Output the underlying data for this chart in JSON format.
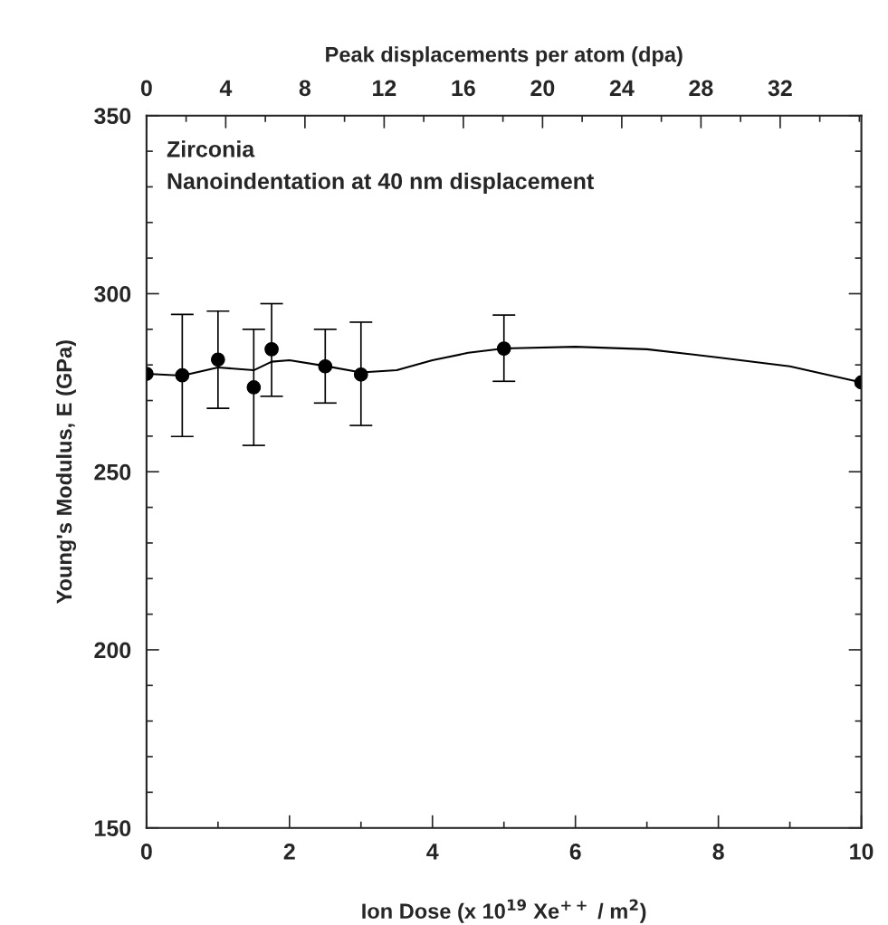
{
  "chart_data": {
    "type": "scatter",
    "xlabel": "Ion Dose (x 10$^{19}$ Xe$^{++}$ / m$^{2}$)",
    "ylabel": "Young's Modulus, E (GPa)",
    "x2label": "Peak displacements per atom (dpa)",
    "annotations": [
      "Zirconia",
      "Nanoindentation at 40 nm displacement"
    ],
    "series": [
      {
        "color": "#000000",
        "marker": "circle",
        "x": [
          0,
          0.5,
          1,
          1.5,
          1.75,
          2.5,
          3,
          5,
          10
        ],
        "values": [
          277.5,
          277.1,
          281.5,
          273.7,
          284.4,
          279.6,
          277.3,
          284.6,
          275.1
        ],
        "errors": [
          null,
          [
            259.9,
            294.2
          ],
          [
            267.8,
            295.1
          ],
          [
            257.4,
            290
          ],
          [
            271.2,
            297.2
          ],
          [
            269.3,
            290
          ],
          [
            263.0,
            292
          ],
          [
            275.4,
            294
          ],
          null
        ]
      },
      {
        "type": "line",
        "color": "#000000",
        "marker": "none",
        "line_style": "solid",
        "x": [
          0,
          0.5,
          1,
          1.5,
          1.75,
          2,
          2.5,
          3,
          3.5,
          4,
          4.5,
          5,
          6,
          7,
          8,
          9,
          10
        ],
        "values": [
          277.5,
          277.0,
          279.3,
          278.5,
          280.9,
          281.3,
          279.7,
          277.9,
          278.5,
          281.3,
          283.4,
          284.6,
          285.1,
          284.4,
          282.1,
          279.6,
          275.1
        ]
      }
    ],
    "xlim": [
      0,
      10
    ],
    "xticks": [
      0,
      {
        "value": 1,
        "label": null
      },
      2,
      {
        "value": 3,
        "label": null
      },
      4,
      {
        "value": 5,
        "label": null
      },
      6,
      {
        "value": 7,
        "label": null
      },
      8,
      {
        "value": 9,
        "label": null
      },
      10
    ],
    "ylim": [
      150,
      350
    ],
    "yticks": [
      150,
      {
        "value": 160,
        "label": null
      },
      {
        "value": 170,
        "label": null
      },
      {
        "value": 180,
        "label": null
      },
      {
        "value": 190,
        "label": null
      },
      200,
      {
        "value": 210,
        "label": null
      },
      {
        "value": 220,
        "label": null
      },
      {
        "value": 230,
        "label": null
      },
      {
        "value": 240,
        "label": null
      },
      250,
      {
        "value": 260,
        "label": null
      },
      {
        "value": 270,
        "label": null
      },
      {
        "value": 280,
        "label": null
      },
      {
        "value": 290,
        "label": null
      },
      300,
      {
        "value": 310,
        "label": null
      },
      {
        "value": 320,
        "label": null
      },
      {
        "value": 330,
        "label": null
      },
      {
        "value": 340,
        "label": null
      },
      350
    ],
    "x2lim": [
      0,
      36.1
    ],
    "x2ticks": [
      0,
      {
        "value": 2,
        "label": null
      },
      4,
      {
        "value": 6,
        "label": null
      },
      8,
      {
        "value": 10,
        "label": null
      },
      12,
      {
        "value": 14,
        "label": null
      },
      16,
      {
        "value": 18,
        "label": null
      },
      20,
      {
        "value": 22,
        "label": null
      },
      24,
      {
        "value": 26,
        "label": null
      },
      28,
      {
        "value": 30,
        "label": null
      },
      32,
      {
        "value": 34,
        "label": null
      },
      {
        "value": 36,
        "label": null
      }
    ],
    "grid": false,
    "legend": false
  }
}
